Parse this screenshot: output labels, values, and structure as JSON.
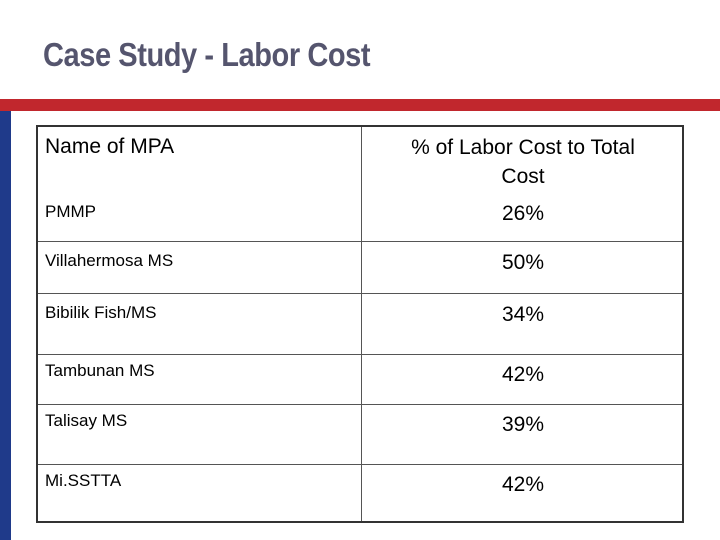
{
  "slide": {
    "title": "Case Study - Labor Cost"
  },
  "colors": {
    "accent_red": "#c1272d",
    "accent_blue": "#1f3a8a",
    "title_color": "#55556e"
  },
  "table": {
    "headers": {
      "name": "Name of MPA",
      "value_line1": "% of Labor Cost to Total",
      "value_line2": "Cost"
    },
    "rows": [
      {
        "name": "PMMP",
        "value": "26%"
      },
      {
        "name": "Villahermosa MS",
        "value": "50%"
      },
      {
        "name": "Bibilik Fish/MS",
        "value": "34%"
      },
      {
        "name": "Tambunan MS",
        "value": "42%"
      },
      {
        "name": "Talisay MS",
        "value": "39%"
      },
      {
        "name": "Mi.SSTTA",
        "value": "42%"
      }
    ]
  }
}
